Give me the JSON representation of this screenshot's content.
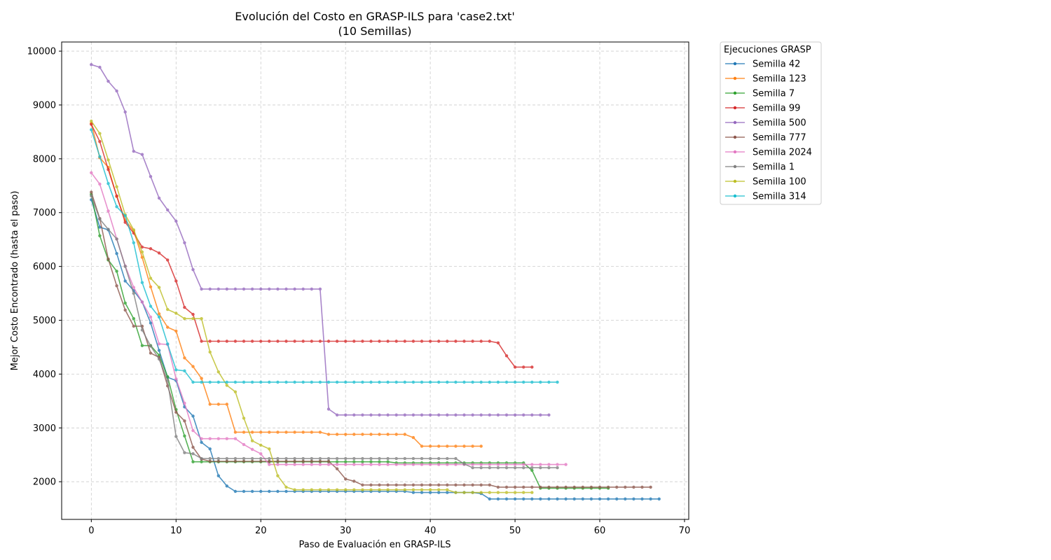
{
  "chart_data": {
    "type": "line",
    "title": "Evolución del Costo en GRASP-ILS para 'case2.txt'",
    "subtitle": "(10 Semillas)",
    "xlabel": "Paso de Evaluación en GRASP-ILS",
    "ylabel": "Mejor Costo Encontrado (hasta el paso)",
    "xlim": [
      -3.5,
      70.5
    ],
    "ylim": [
      1300,
      10170
    ],
    "xticks": [
      0,
      10,
      20,
      30,
      40,
      50,
      60,
      70
    ],
    "yticks": [
      2000,
      3000,
      4000,
      5000,
      6000,
      7000,
      8000,
      9000,
      10000
    ],
    "grid": true,
    "legend_title": "Ejecuciones GRASP",
    "legend_position": "outside-top-right",
    "series": [
      {
        "name": "Semilla 42",
        "color": "#1f77b4",
        "y": [
          7240,
          6730,
          6680,
          6240,
          5730,
          5550,
          5340,
          4950,
          4440,
          3940,
          3880,
          3390,
          3220,
          2730,
          2610,
          2110,
          1920,
          1820,
          1820,
          1820,
          1820,
          1820,
          1820,
          1820,
          1820,
          1820,
          1820,
          1820,
          1820,
          1820,
          1820,
          1820,
          1820,
          1820,
          1820,
          1820,
          1820,
          1820,
          1800,
          1800,
          1800,
          1800,
          1800,
          1800,
          1800,
          1800,
          1780,
          1680,
          1680,
          1680,
          1680,
          1680,
          1680,
          1680,
          1680,
          1680,
          1680,
          1680,
          1680,
          1680,
          1680,
          1680,
          1680,
          1680,
          1680,
          1680,
          1680,
          1680
        ]
      },
      {
        "name": "Semilla 123",
        "color": "#ff7f0e",
        "y": [
          8660,
          8020,
          7840,
          7300,
          6860,
          6660,
          6170,
          5620,
          5120,
          4870,
          4800,
          4300,
          4140,
          3920,
          3440,
          3440,
          3440,
          2920,
          2920,
          2920,
          2920,
          2920,
          2920,
          2920,
          2920,
          2920,
          2920,
          2920,
          2880,
          2880,
          2880,
          2880,
          2880,
          2880,
          2880,
          2880,
          2880,
          2880,
          2820,
          2660,
          2660,
          2660,
          2660,
          2660,
          2660,
          2660,
          2660
        ]
      },
      {
        "name": "Semilla 7",
        "color": "#2ca02c",
        "y": [
          7340,
          6570,
          6120,
          5910,
          5320,
          5030,
          4530,
          4530,
          4350,
          3950,
          3340,
          2850,
          2370,
          2370,
          2370,
          2370,
          2370,
          2370,
          2370,
          2370,
          2370,
          2370,
          2370,
          2370,
          2370,
          2370,
          2370,
          2370,
          2370,
          2370,
          2370,
          2370,
          2370,
          2370,
          2370,
          2370,
          2350,
          2350,
          2350,
          2350,
          2350,
          2350,
          2350,
          2350,
          2350,
          2350,
          2350,
          2350,
          2350,
          2350,
          2350,
          2350,
          2210,
          1880,
          1880,
          1880,
          1880,
          1880,
          1880,
          1880,
          1880,
          1880
        ]
      },
      {
        "name": "Semilla 99",
        "color": "#d62728",
        "y": [
          8640,
          8320,
          7800,
          7310,
          6820,
          6620,
          6360,
          6330,
          6250,
          6120,
          5730,
          5240,
          5110,
          4610,
          4610,
          4610,
          4610,
          4610,
          4610,
          4610,
          4610,
          4610,
          4610,
          4610,
          4610,
          4610,
          4610,
          4610,
          4610,
          4610,
          4610,
          4610,
          4610,
          4610,
          4610,
          4610,
          4610,
          4610,
          4610,
          4610,
          4610,
          4610,
          4610,
          4610,
          4610,
          4610,
          4610,
          4610,
          4580,
          4340,
          4130,
          4130,
          4130
        ]
      },
      {
        "name": "Semilla 500",
        "color": "#9467bd",
        "y": [
          9750,
          9700,
          9440,
          9260,
          8870,
          8140,
          8080,
          7670,
          7270,
          7050,
          6840,
          6440,
          5940,
          5580,
          5580,
          5580,
          5580,
          5580,
          5580,
          5580,
          5580,
          5580,
          5580,
          5580,
          5580,
          5580,
          5580,
          5580,
          3350,
          3240,
          3240,
          3240,
          3240,
          3240,
          3240,
          3240,
          3240,
          3240,
          3240,
          3240,
          3240,
          3240,
          3240,
          3240,
          3240,
          3240,
          3240,
          3240,
          3240,
          3240,
          3240,
          3240,
          3240,
          3240,
          3240
        ]
      },
      {
        "name": "Semilla 777",
        "color": "#8c564b",
        "y": [
          7380,
          6890,
          6140,
          5640,
          5190,
          4890,
          4890,
          4390,
          4310,
          3780,
          3290,
          3130,
          2640,
          2420,
          2380,
          2380,
          2380,
          2380,
          2380,
          2380,
          2380,
          2380,
          2380,
          2380,
          2380,
          2380,
          2380,
          2380,
          2380,
          2240,
          2050,
          2010,
          1940,
          1940,
          1940,
          1940,
          1940,
          1940,
          1940,
          1940,
          1940,
          1940,
          1940,
          1940,
          1940,
          1940,
          1940,
          1940,
          1900,
          1900,
          1900,
          1900,
          1900,
          1900,
          1900,
          1900,
          1900,
          1900,
          1900,
          1900,
          1900,
          1900,
          1900,
          1900,
          1900,
          1900,
          1900
        ]
      },
      {
        "name": "Semilla 2024",
        "color": "#e377c2",
        "y": [
          7740,
          7530,
          7030,
          6510,
          6010,
          5610,
          5340,
          5060,
          4560,
          4550,
          3910,
          3460,
          2950,
          2800,
          2800,
          2800,
          2800,
          2800,
          2690,
          2600,
          2520,
          2320,
          2320,
          2320,
          2320,
          2320,
          2320,
          2320,
          2320,
          2320,
          2320,
          2320,
          2320,
          2320,
          2320,
          2320,
          2320,
          2320,
          2320,
          2320,
          2320,
          2320,
          2320,
          2320,
          2320,
          2320,
          2320,
          2320,
          2320,
          2320,
          2320,
          2320,
          2320,
          2320,
          2320,
          2320,
          2320
        ]
      },
      {
        "name": "Semilla 1",
        "color": "#7f7f7f",
        "y": [
          7310,
          6880,
          6690,
          6510,
          6000,
          5500,
          4820,
          4520,
          4280,
          3880,
          2840,
          2540,
          2520,
          2430,
          2430,
          2430,
          2430,
          2430,
          2430,
          2430,
          2430,
          2430,
          2430,
          2430,
          2430,
          2430,
          2430,
          2430,
          2430,
          2430,
          2430,
          2430,
          2430,
          2430,
          2430,
          2430,
          2430,
          2430,
          2430,
          2430,
          2430,
          2430,
          2430,
          2430,
          2330,
          2260,
          2260,
          2260,
          2260,
          2260,
          2260,
          2260,
          2260,
          2260,
          2260,
          2260
        ]
      },
      {
        "name": "Semilla 100",
        "color": "#bcbd22",
        "y": [
          8700,
          8470,
          7980,
          7480,
          6960,
          6680,
          6270,
          5780,
          5610,
          5200,
          5130,
          5030,
          5030,
          5030,
          4410,
          4040,
          3790,
          3670,
          3180,
          2760,
          2680,
          2610,
          2110,
          1900,
          1850,
          1850,
          1850,
          1850,
          1850,
          1850,
          1850,
          1850,
          1850,
          1850,
          1850,
          1850,
          1850,
          1850,
          1850,
          1850,
          1850,
          1850,
          1850,
          1800,
          1800,
          1800,
          1800,
          1800,
          1800,
          1800,
          1800,
          1800,
          1800
        ]
      },
      {
        "name": "Semilla 314",
        "color": "#17becf",
        "y": [
          8540,
          8040,
          7540,
          7110,
          6940,
          6440,
          5700,
          5260,
          5060,
          4560,
          4080,
          4060,
          3850,
          3850,
          3850,
          3850,
          3850,
          3850,
          3850,
          3850,
          3850,
          3850,
          3850,
          3850,
          3850,
          3850,
          3850,
          3850,
          3850,
          3850,
          3850,
          3850,
          3850,
          3850,
          3850,
          3850,
          3850,
          3850,
          3850,
          3850,
          3850,
          3850,
          3850,
          3850,
          3850,
          3850,
          3850,
          3850,
          3850,
          3850,
          3850,
          3850,
          3850,
          3850,
          3850,
          3850
        ]
      }
    ]
  }
}
